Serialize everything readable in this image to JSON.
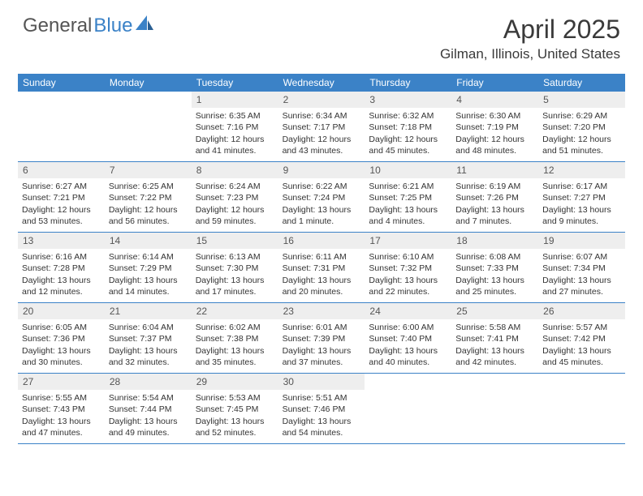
{
  "brand": {
    "part1": "General",
    "part2": "Blue"
  },
  "title": "April 2025",
  "location": "Gilman, Illinois, United States",
  "colors": {
    "header_bg": "#3b82c7",
    "header_text": "#ffffff",
    "daynum_bg": "#eeeeee",
    "border": "#3b82c7",
    "text": "#333333"
  },
  "dow": [
    "Sunday",
    "Monday",
    "Tuesday",
    "Wednesday",
    "Thursday",
    "Friday",
    "Saturday"
  ],
  "weeks": [
    [
      null,
      null,
      {
        "n": "1",
        "sr": "Sunrise: 6:35 AM",
        "ss": "Sunset: 7:16 PM",
        "dl1": "Daylight: 12 hours",
        "dl2": "and 41 minutes."
      },
      {
        "n": "2",
        "sr": "Sunrise: 6:34 AM",
        "ss": "Sunset: 7:17 PM",
        "dl1": "Daylight: 12 hours",
        "dl2": "and 43 minutes."
      },
      {
        "n": "3",
        "sr": "Sunrise: 6:32 AM",
        "ss": "Sunset: 7:18 PM",
        "dl1": "Daylight: 12 hours",
        "dl2": "and 45 minutes."
      },
      {
        "n": "4",
        "sr": "Sunrise: 6:30 AM",
        "ss": "Sunset: 7:19 PM",
        "dl1": "Daylight: 12 hours",
        "dl2": "and 48 minutes."
      },
      {
        "n": "5",
        "sr": "Sunrise: 6:29 AM",
        "ss": "Sunset: 7:20 PM",
        "dl1": "Daylight: 12 hours",
        "dl2": "and 51 minutes."
      }
    ],
    [
      {
        "n": "6",
        "sr": "Sunrise: 6:27 AM",
        "ss": "Sunset: 7:21 PM",
        "dl1": "Daylight: 12 hours",
        "dl2": "and 53 minutes."
      },
      {
        "n": "7",
        "sr": "Sunrise: 6:25 AM",
        "ss": "Sunset: 7:22 PM",
        "dl1": "Daylight: 12 hours",
        "dl2": "and 56 minutes."
      },
      {
        "n": "8",
        "sr": "Sunrise: 6:24 AM",
        "ss": "Sunset: 7:23 PM",
        "dl1": "Daylight: 12 hours",
        "dl2": "and 59 minutes."
      },
      {
        "n": "9",
        "sr": "Sunrise: 6:22 AM",
        "ss": "Sunset: 7:24 PM",
        "dl1": "Daylight: 13 hours",
        "dl2": "and 1 minute."
      },
      {
        "n": "10",
        "sr": "Sunrise: 6:21 AM",
        "ss": "Sunset: 7:25 PM",
        "dl1": "Daylight: 13 hours",
        "dl2": "and 4 minutes."
      },
      {
        "n": "11",
        "sr": "Sunrise: 6:19 AM",
        "ss": "Sunset: 7:26 PM",
        "dl1": "Daylight: 13 hours",
        "dl2": "and 7 minutes."
      },
      {
        "n": "12",
        "sr": "Sunrise: 6:17 AM",
        "ss": "Sunset: 7:27 PM",
        "dl1": "Daylight: 13 hours",
        "dl2": "and 9 minutes."
      }
    ],
    [
      {
        "n": "13",
        "sr": "Sunrise: 6:16 AM",
        "ss": "Sunset: 7:28 PM",
        "dl1": "Daylight: 13 hours",
        "dl2": "and 12 minutes."
      },
      {
        "n": "14",
        "sr": "Sunrise: 6:14 AM",
        "ss": "Sunset: 7:29 PM",
        "dl1": "Daylight: 13 hours",
        "dl2": "and 14 minutes."
      },
      {
        "n": "15",
        "sr": "Sunrise: 6:13 AM",
        "ss": "Sunset: 7:30 PM",
        "dl1": "Daylight: 13 hours",
        "dl2": "and 17 minutes."
      },
      {
        "n": "16",
        "sr": "Sunrise: 6:11 AM",
        "ss": "Sunset: 7:31 PM",
        "dl1": "Daylight: 13 hours",
        "dl2": "and 20 minutes."
      },
      {
        "n": "17",
        "sr": "Sunrise: 6:10 AM",
        "ss": "Sunset: 7:32 PM",
        "dl1": "Daylight: 13 hours",
        "dl2": "and 22 minutes."
      },
      {
        "n": "18",
        "sr": "Sunrise: 6:08 AM",
        "ss": "Sunset: 7:33 PM",
        "dl1": "Daylight: 13 hours",
        "dl2": "and 25 minutes."
      },
      {
        "n": "19",
        "sr": "Sunrise: 6:07 AM",
        "ss": "Sunset: 7:34 PM",
        "dl1": "Daylight: 13 hours",
        "dl2": "and 27 minutes."
      }
    ],
    [
      {
        "n": "20",
        "sr": "Sunrise: 6:05 AM",
        "ss": "Sunset: 7:36 PM",
        "dl1": "Daylight: 13 hours",
        "dl2": "and 30 minutes."
      },
      {
        "n": "21",
        "sr": "Sunrise: 6:04 AM",
        "ss": "Sunset: 7:37 PM",
        "dl1": "Daylight: 13 hours",
        "dl2": "and 32 minutes."
      },
      {
        "n": "22",
        "sr": "Sunrise: 6:02 AM",
        "ss": "Sunset: 7:38 PM",
        "dl1": "Daylight: 13 hours",
        "dl2": "and 35 minutes."
      },
      {
        "n": "23",
        "sr": "Sunrise: 6:01 AM",
        "ss": "Sunset: 7:39 PM",
        "dl1": "Daylight: 13 hours",
        "dl2": "and 37 minutes."
      },
      {
        "n": "24",
        "sr": "Sunrise: 6:00 AM",
        "ss": "Sunset: 7:40 PM",
        "dl1": "Daylight: 13 hours",
        "dl2": "and 40 minutes."
      },
      {
        "n": "25",
        "sr": "Sunrise: 5:58 AM",
        "ss": "Sunset: 7:41 PM",
        "dl1": "Daylight: 13 hours",
        "dl2": "and 42 minutes."
      },
      {
        "n": "26",
        "sr": "Sunrise: 5:57 AM",
        "ss": "Sunset: 7:42 PM",
        "dl1": "Daylight: 13 hours",
        "dl2": "and 45 minutes."
      }
    ],
    [
      {
        "n": "27",
        "sr": "Sunrise: 5:55 AM",
        "ss": "Sunset: 7:43 PM",
        "dl1": "Daylight: 13 hours",
        "dl2": "and 47 minutes."
      },
      {
        "n": "28",
        "sr": "Sunrise: 5:54 AM",
        "ss": "Sunset: 7:44 PM",
        "dl1": "Daylight: 13 hours",
        "dl2": "and 49 minutes."
      },
      {
        "n": "29",
        "sr": "Sunrise: 5:53 AM",
        "ss": "Sunset: 7:45 PM",
        "dl1": "Daylight: 13 hours",
        "dl2": "and 52 minutes."
      },
      {
        "n": "30",
        "sr": "Sunrise: 5:51 AM",
        "ss": "Sunset: 7:46 PM",
        "dl1": "Daylight: 13 hours",
        "dl2": "and 54 minutes."
      },
      null,
      null,
      null
    ]
  ]
}
